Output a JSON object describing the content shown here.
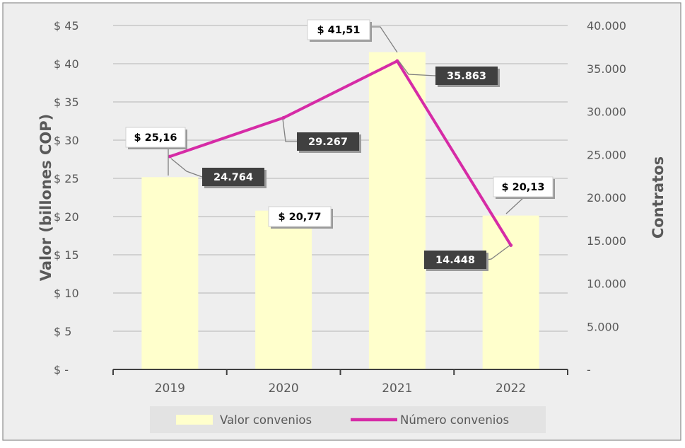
{
  "chart_data": {
    "type": "bar",
    "categories": [
      "2019",
      "2020",
      "2021",
      "2022"
    ],
    "series": [
      {
        "name": "Valor convenios",
        "type": "bar",
        "axis": "left",
        "values": [
          25.16,
          20.77,
          41.51,
          20.13
        ],
        "labels": [
          "$ 25,16",
          "$ 20,77",
          "$ 41,51",
          "$ 20,13"
        ],
        "color": "#FFFFCC"
      },
      {
        "name": "Número convenios",
        "type": "line",
        "axis": "right",
        "values": [
          24764,
          29267,
          35863,
          14448
        ],
        "labels": [
          "24.764",
          "29.267",
          "35.863",
          "14.448"
        ],
        "color": "#D62BA6"
      }
    ],
    "ylabel": "Valor (billones COP)",
    "y2label": "Contratos",
    "ylim": [
      0,
      45
    ],
    "y2lim": [
      0,
      40000
    ],
    "yticks": [
      "$ -",
      "$ 5",
      "$ 10",
      "$ 15",
      "$ 20",
      "$ 25",
      "$ 30",
      "$ 35",
      "$ 40",
      "$ 45"
    ],
    "y2ticks": [
      "-",
      "5.000",
      "10.000",
      "15.000",
      "20.000",
      "25.000",
      "30.000",
      "35.000",
      "40.000"
    ],
    "grid": true,
    "legend": "bottom",
    "colors": {
      "background": "#EEEEEE",
      "border": "#8C8C8C",
      "grid": "#B4B4B4",
      "axis": "#404040",
      "text": "#595959",
      "line_label_bg": "#404040"
    }
  }
}
